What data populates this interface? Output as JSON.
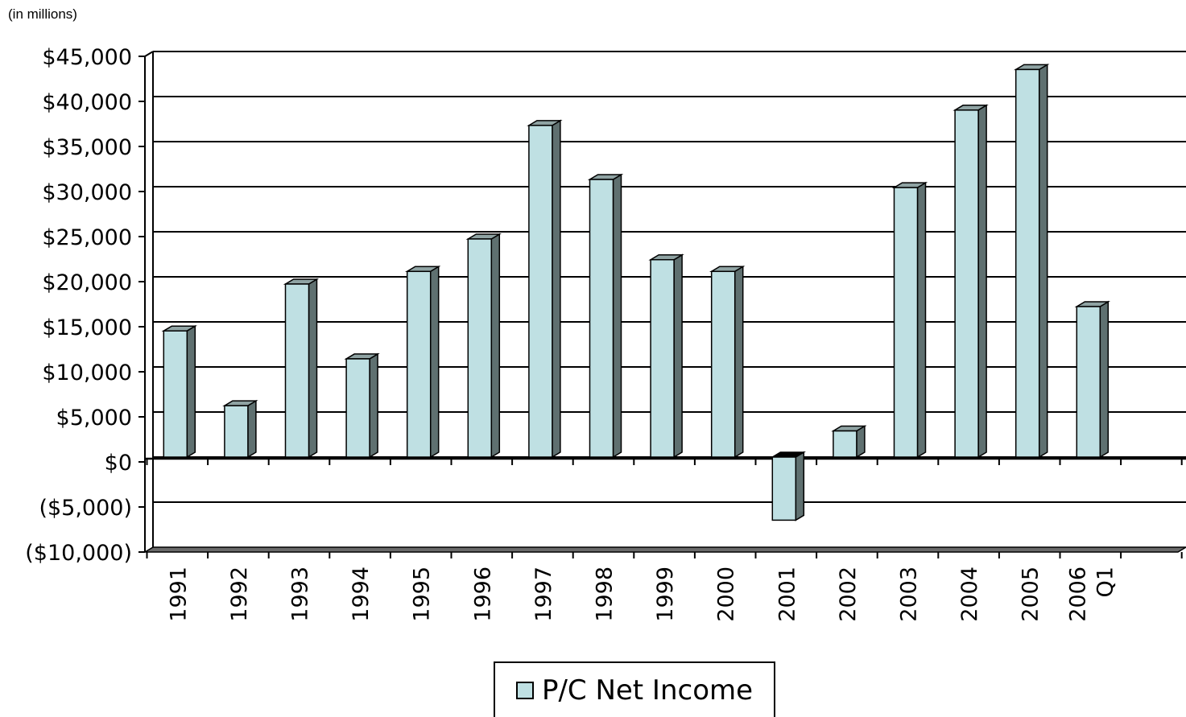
{
  "units_note": "(in millions)",
  "legend": {
    "label": "P/C Net Income"
  },
  "colors": {
    "bar_front": "#bfe0e3",
    "bar_side": "#5f7070",
    "bar_top": "#8fa3a3",
    "neg_top": "#000000",
    "axis": "#000000",
    "grid": "#000000"
  },
  "chart_data": {
    "type": "bar",
    "title": "",
    "xlabel": "",
    "ylabel": "",
    "categories": [
      "1991",
      "1992",
      "1993",
      "1994",
      "1995",
      "1996",
      "1997",
      "1998",
      "1999",
      "2000",
      "2001",
      "2002",
      "2003",
      "2004",
      "2005",
      "Q1 2006"
    ],
    "series": [
      {
        "name": "P/C Net Income",
        "values": [
          14000,
          5700,
          19200,
          10900,
          20600,
          24200,
          36800,
          30800,
          21900,
          20600,
          -7000,
          2900,
          29900,
          38500,
          43000,
          16700
        ]
      }
    ],
    "ylim": [
      -10000,
      45000
    ],
    "yticks": [
      -10000,
      -5000,
      0,
      5000,
      10000,
      15000,
      20000,
      25000,
      30000,
      35000,
      40000,
      45000
    ],
    "ytick_labels": [
      "($10,000)",
      "($5,000)",
      "$0",
      "$5,000",
      "$10,000",
      "$15,000",
      "$20,000",
      "$25,000",
      "$30,000",
      "$35,000",
      "$40,000",
      "$45,000"
    ],
    "grid": true,
    "legend_position": "bottom"
  }
}
